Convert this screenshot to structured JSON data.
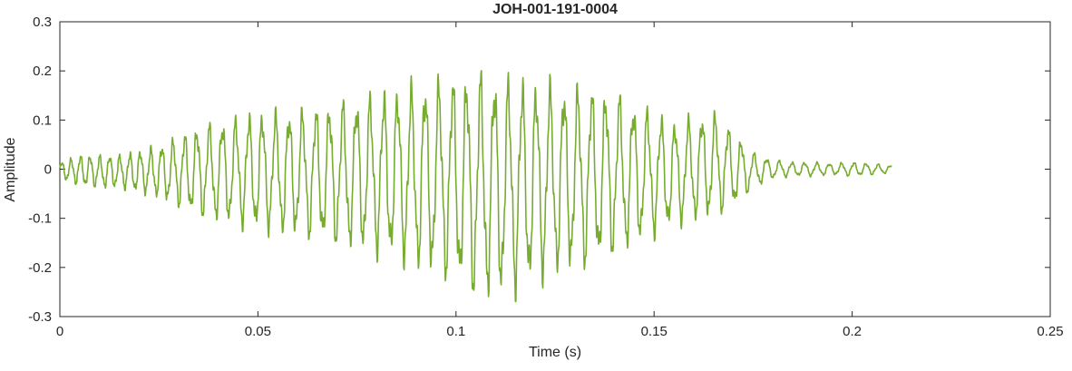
{
  "figure": {
    "background": "#ffffff"
  },
  "chart_data": {
    "type": "line",
    "title": "JOH-001-191-0004",
    "xlabel": "Time (s)",
    "ylabel": "Amplitude",
    "xlim": [
      0,
      0.25
    ],
    "ylim": [
      -0.3,
      0.3
    ],
    "x_ticks": [
      0,
      0.05,
      0.1,
      0.15,
      0.2,
      0.25
    ],
    "x_tick_labels": [
      "0",
      "0.05",
      "0.1",
      "0.15",
      "0.2",
      "0.25"
    ],
    "y_ticks": [
      -0.3,
      -0.2,
      -0.1,
      0,
      0.1,
      0.2,
      0.3
    ],
    "y_tick_labels": [
      "-0.3",
      "-0.2",
      "-0.1",
      "0",
      "0.1",
      "0.2",
      "0.3"
    ],
    "grid": false,
    "legend": null,
    "box": true,
    "line_color": "#77AC30",
    "axis_color": "#262626",
    "signal": {
      "kind": "amplitude-modulated oscillatory waveform (single green trace)",
      "duration_s": 0.21,
      "carrier_hz_nominal": 285,
      "freq_t": [
        0,
        0.02,
        0.04,
        0.1,
        0.15,
        0.175,
        0.21
      ],
      "freq_hz": [
        430,
        380,
        300,
        285,
        285,
        310,
        330
      ],
      "envelope_t": [
        0,
        0.005,
        0.01,
        0.015,
        0.02,
        0.025,
        0.03,
        0.035,
        0.04,
        0.045,
        0.05,
        0.055,
        0.06,
        0.065,
        0.07,
        0.075,
        0.08,
        0.085,
        0.09,
        0.095,
        0.1,
        0.105,
        0.11,
        0.115,
        0.12,
        0.125,
        0.13,
        0.135,
        0.14,
        0.145,
        0.15,
        0.155,
        0.16,
        0.165,
        0.17,
        0.175,
        0.18,
        0.185,
        0.19,
        0.195,
        0.2,
        0.205,
        0.21
      ],
      "envelope_upper": [
        0.015,
        0.03,
        0.03,
        0.03,
        0.04,
        0.05,
        0.07,
        0.09,
        0.1,
        0.11,
        0.12,
        0.12,
        0.125,
        0.13,
        0.14,
        0.15,
        0.16,
        0.17,
        0.18,
        0.19,
        0.195,
        0.205,
        0.2,
        0.19,
        0.185,
        0.18,
        0.175,
        0.17,
        0.16,
        0.14,
        0.12,
        0.1,
        0.11,
        0.12,
        0.08,
        0.035,
        0.02,
        0.015,
        0.015,
        0.012,
        0.015,
        0.012,
        0.008
      ],
      "envelope_lower": [
        -0.02,
        -0.035,
        -0.04,
        -0.04,
        -0.05,
        -0.06,
        -0.08,
        -0.1,
        -0.11,
        -0.12,
        -0.13,
        -0.135,
        -0.14,
        -0.15,
        -0.16,
        -0.17,
        -0.18,
        -0.19,
        -0.21,
        -0.22,
        -0.24,
        -0.27,
        -0.27,
        -0.26,
        -0.24,
        -0.22,
        -0.21,
        -0.2,
        -0.18,
        -0.16,
        -0.14,
        -0.12,
        -0.11,
        -0.1,
        -0.08,
        -0.04,
        -0.02,
        -0.015,
        -0.015,
        -0.012,
        -0.015,
        -0.012,
        -0.008
      ],
      "peak_positive_amplitude": 0.205,
      "peak_negative_amplitude": -0.27,
      "peak_time_s": 0.108
    }
  }
}
